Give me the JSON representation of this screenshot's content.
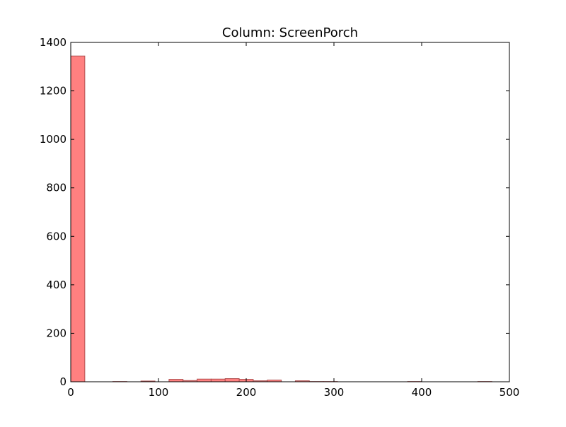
{
  "chart_data": {
    "type": "bar",
    "title": "Column: ScreenPorch",
    "xlabel": "",
    "ylabel": "",
    "xlim": [
      0,
      500
    ],
    "ylim": [
      0,
      1400
    ],
    "xticks": [
      0,
      100,
      200,
      300,
      400,
      500
    ],
    "yticks": [
      0,
      200,
      400,
      600,
      800,
      1000,
      1200,
      1400
    ],
    "grid": false,
    "legend": "none",
    "colors": {
      "bar_fill": "#ff8080",
      "bar_edge": "#b05050",
      "axis": "#000000",
      "background": "#ffffff"
    },
    "bins": [
      {
        "x0": 0,
        "x1": 16,
        "count": 1344
      },
      {
        "x0": 16,
        "x1": 32,
        "count": 0
      },
      {
        "x0": 32,
        "x1": 48,
        "count": 0
      },
      {
        "x0": 48,
        "x1": 64,
        "count": 1
      },
      {
        "x0": 64,
        "x1": 80,
        "count": 0
      },
      {
        "x0": 80,
        "x1": 96,
        "count": 3
      },
      {
        "x0": 96,
        "x1": 112,
        "count": 0
      },
      {
        "x0": 112,
        "x1": 128,
        "count": 10
      },
      {
        "x0": 128,
        "x1": 144,
        "count": 5
      },
      {
        "x0": 144,
        "x1": 160,
        "count": 11
      },
      {
        "x0": 160,
        "x1": 176,
        "count": 11
      },
      {
        "x0": 176,
        "x1": 192,
        "count": 13
      },
      {
        "x0": 192,
        "x1": 208,
        "count": 10
      },
      {
        "x0": 208,
        "x1": 224,
        "count": 4
      },
      {
        "x0": 224,
        "x1": 240,
        "count": 7
      },
      {
        "x0": 240,
        "x1": 256,
        "count": 0
      },
      {
        "x0": 256,
        "x1": 272,
        "count": 4
      },
      {
        "x0": 272,
        "x1": 288,
        "count": 1
      },
      {
        "x0": 288,
        "x1": 304,
        "count": 1
      },
      {
        "x0": 304,
        "x1": 320,
        "count": 0
      },
      {
        "x0": 320,
        "x1": 336,
        "count": 0
      },
      {
        "x0": 336,
        "x1": 352,
        "count": 0
      },
      {
        "x0": 352,
        "x1": 368,
        "count": 0
      },
      {
        "x0": 368,
        "x1": 384,
        "count": 0
      },
      {
        "x0": 384,
        "x1": 400,
        "count": 1
      },
      {
        "x0": 400,
        "x1": 416,
        "count": 0
      },
      {
        "x0": 416,
        "x1": 432,
        "count": 0
      },
      {
        "x0": 432,
        "x1": 448,
        "count": 0
      },
      {
        "x0": 448,
        "x1": 464,
        "count": 0
      },
      {
        "x0": 464,
        "x1": 480,
        "count": 1
      }
    ]
  }
}
